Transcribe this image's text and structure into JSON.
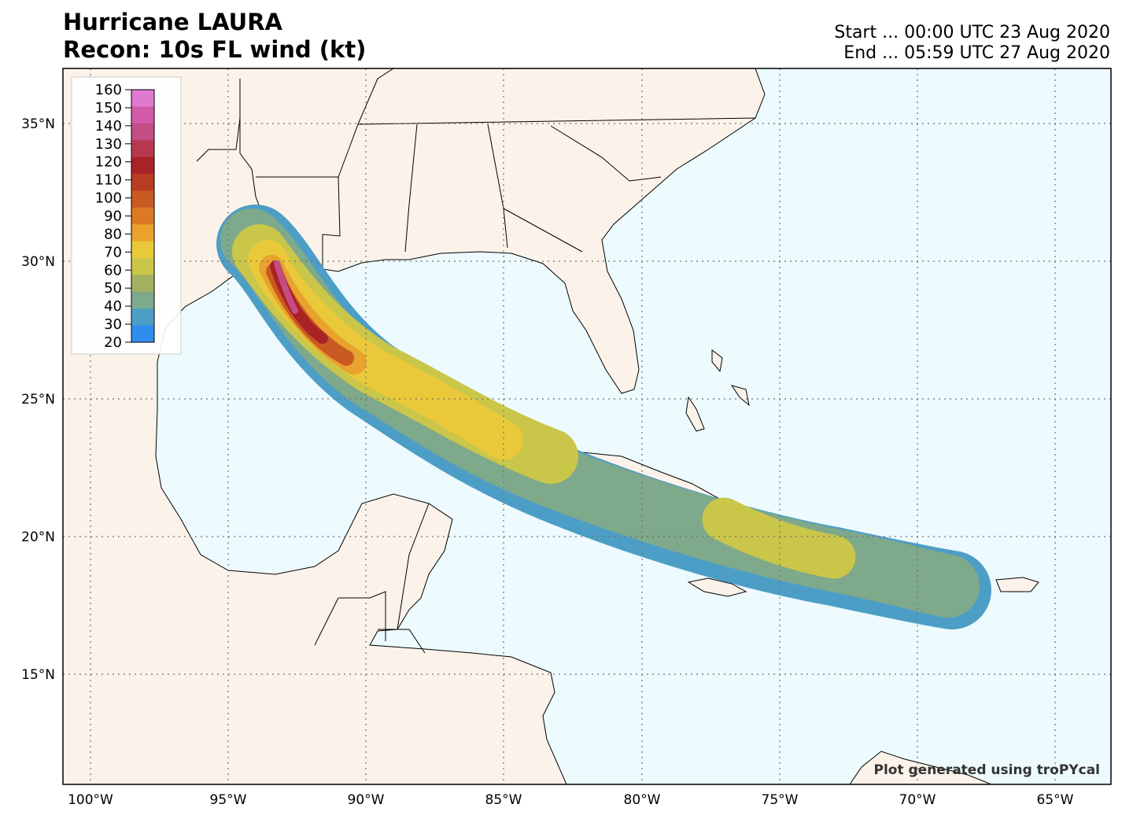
{
  "title_line1": "Hurricane LAURA",
  "title_line2": "Recon: 10s FL wind (kt)",
  "start_text": "Start ... 00:00 UTC 23 Aug 2020",
  "end_text": "End ... 05:59 UTC 27 Aug 2020",
  "credit": "Plot generated using troPYcal",
  "colorbar": {
    "ticks": [
      "160",
      "150",
      "140",
      "130",
      "120",
      "110",
      "100",
      "90",
      "80",
      "70",
      "60",
      "50",
      "40",
      "30",
      "20"
    ],
    "colors": [
      "#e07ad0",
      "#d25aa8",
      "#c44d84",
      "#b8394f",
      "#a92226",
      "#b83c21",
      "#c85a22",
      "#dc7a24",
      "#e9a22e",
      "#e9c93a",
      "#c9c64a",
      "#a3b061",
      "#7fa98b",
      "#4d9ec6",
      "#2f8df0"
    ]
  },
  "lon_labels": [
    "100°W",
    "95°W",
    "90°W",
    "85°W",
    "80°W",
    "75°W",
    "70°W",
    "65°W"
  ],
  "lat_labels": [
    "35°N",
    "30°N",
    "25°N",
    "20°N",
    "15°N"
  ],
  "colors": {
    "land": "#fbf3ea",
    "ocean": "#edfafe",
    "grid": "#707070"
  }
}
